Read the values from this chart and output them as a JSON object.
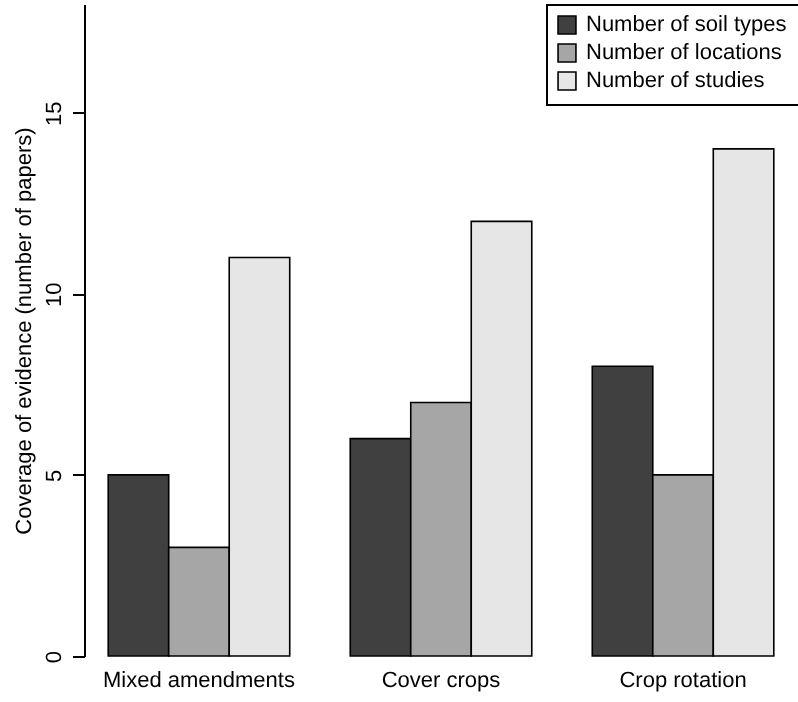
{
  "chart_data": {
    "type": "bar",
    "ylabel": "Coverage of evidence (number of papers)",
    "categories": [
      "Mixed amendments",
      "Cover crops",
      "Crop rotation"
    ],
    "series": [
      {
        "name": "Number of soil types",
        "color": "#404040",
        "values": [
          5,
          6,
          8
        ]
      },
      {
        "name": "Number of locations",
        "color": "#a6a6a6",
        "values": [
          3,
          7,
          5
        ]
      },
      {
        "name": "Number of studies",
        "color": "#e6e6e6",
        "values": [
          11,
          12,
          14
        ]
      }
    ],
    "ylim": [
      0,
      18
    ],
    "yticks": [
      0,
      5,
      10,
      15
    ],
    "grid": false,
    "legend": "top right"
  }
}
